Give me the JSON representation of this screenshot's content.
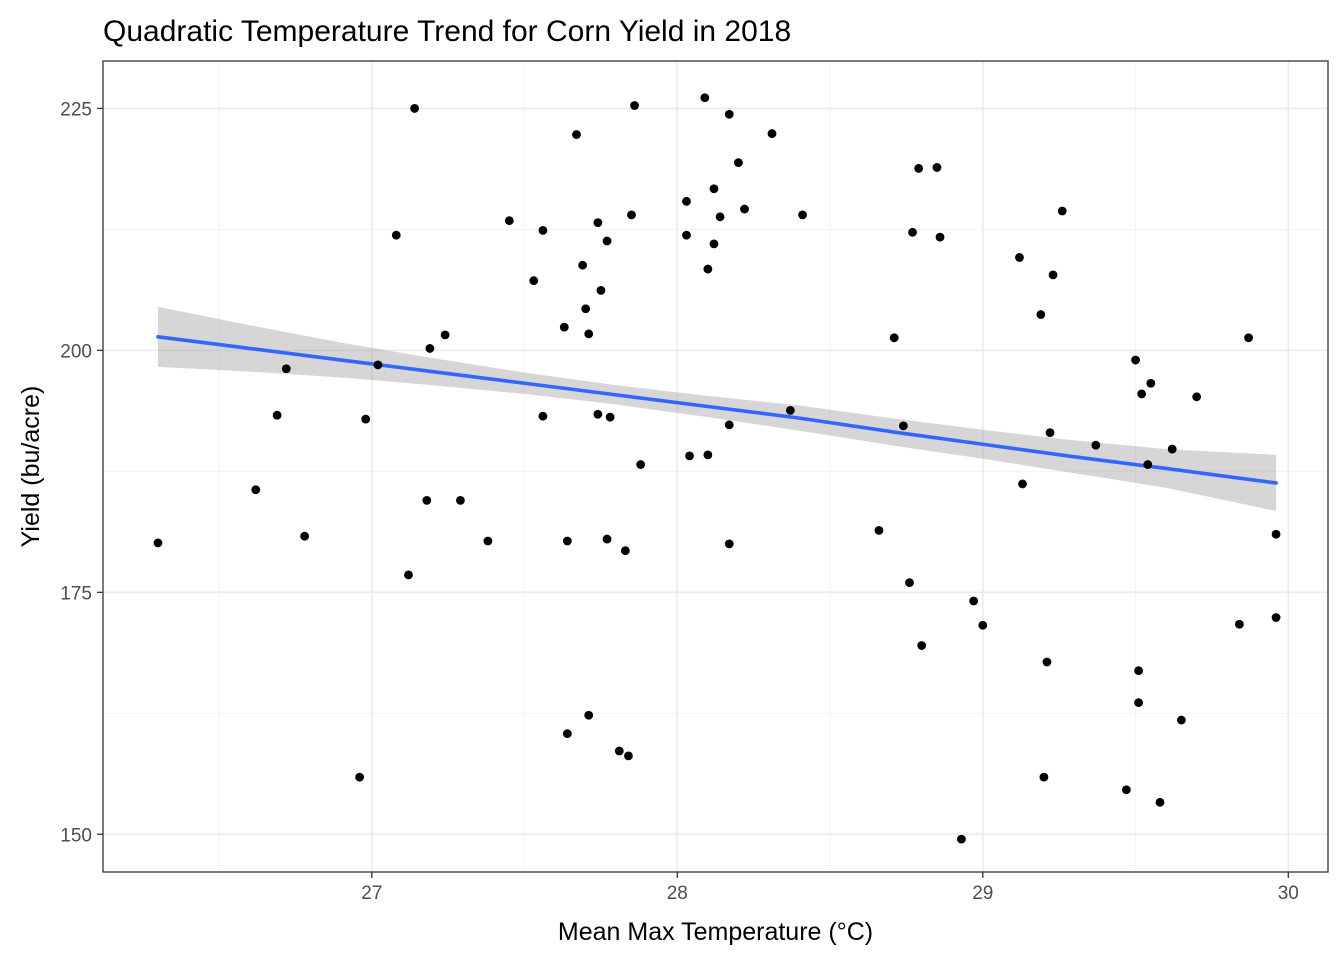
{
  "chart_data": {
    "type": "scatter",
    "title": "Quadratic Temperature Trend for Corn Yield in 2018",
    "xlabel": "Mean Max Temperature (°C)",
    "ylabel": "Yield (bu/acre)",
    "xlim": [
      26.12,
      30.13
    ],
    "ylim": [
      146.1,
      229.9
    ],
    "x_ticks": [
      27,
      28,
      29,
      30
    ],
    "x_tick_labels": [
      "27",
      "28",
      "29",
      "30"
    ],
    "y_ticks": [
      150,
      175,
      200,
      225
    ],
    "y_tick_labels": [
      "150",
      "175",
      "200",
      "225"
    ],
    "grid": true,
    "legend": "none",
    "colors": {
      "points": "#000000",
      "trend": "#3366FF",
      "ribbon": "#999999"
    },
    "points": [
      {
        "x": 26.3,
        "y": 180.1
      },
      {
        "x": 26.62,
        "y": 185.6
      },
      {
        "x": 26.69,
        "y": 193.3
      },
      {
        "x": 26.72,
        "y": 198.1
      },
      {
        "x": 26.78,
        "y": 180.8
      },
      {
        "x": 26.96,
        "y": 155.9
      },
      {
        "x": 26.98,
        "y": 192.9
      },
      {
        "x": 27.02,
        "y": 198.5
      },
      {
        "x": 27.08,
        "y": 211.9
      },
      {
        "x": 27.12,
        "y": 176.8
      },
      {
        "x": 27.14,
        "y": 225.0
      },
      {
        "x": 27.18,
        "y": 184.5
      },
      {
        "x": 27.19,
        "y": 200.2
      },
      {
        "x": 27.24,
        "y": 201.6
      },
      {
        "x": 27.29,
        "y": 184.5
      },
      {
        "x": 27.38,
        "y": 180.3
      },
      {
        "x": 27.45,
        "y": 213.4
      },
      {
        "x": 27.53,
        "y": 207.2
      },
      {
        "x": 27.56,
        "y": 212.4
      },
      {
        "x": 27.56,
        "y": 193.2
      },
      {
        "x": 27.63,
        "y": 202.4
      },
      {
        "x": 27.64,
        "y": 180.3
      },
      {
        "x": 27.64,
        "y": 160.4
      },
      {
        "x": 27.67,
        "y": 222.3
      },
      {
        "x": 27.69,
        "y": 208.8
      },
      {
        "x": 27.7,
        "y": 204.3
      },
      {
        "x": 27.71,
        "y": 162.3
      },
      {
        "x": 27.71,
        "y": 201.7
      },
      {
        "x": 27.74,
        "y": 193.4
      },
      {
        "x": 27.74,
        "y": 213.2
      },
      {
        "x": 27.75,
        "y": 206.2
      },
      {
        "x": 27.77,
        "y": 211.3
      },
      {
        "x": 27.77,
        "y": 180.5
      },
      {
        "x": 27.78,
        "y": 193.1
      },
      {
        "x": 27.81,
        "y": 158.6
      },
      {
        "x": 27.83,
        "y": 179.3
      },
      {
        "x": 27.84,
        "y": 158.1
      },
      {
        "x": 27.85,
        "y": 214.0
      },
      {
        "x": 27.86,
        "y": 225.3
      },
      {
        "x": 27.88,
        "y": 188.2
      },
      {
        "x": 28.03,
        "y": 211.9
      },
      {
        "x": 28.03,
        "y": 215.4
      },
      {
        "x": 28.04,
        "y": 189.1
      },
      {
        "x": 28.09,
        "y": 226.1
      },
      {
        "x": 28.1,
        "y": 208.4
      },
      {
        "x": 28.1,
        "y": 189.2
      },
      {
        "x": 28.12,
        "y": 216.7
      },
      {
        "x": 28.12,
        "y": 211.0
      },
      {
        "x": 28.14,
        "y": 213.8
      },
      {
        "x": 28.17,
        "y": 224.4
      },
      {
        "x": 28.17,
        "y": 192.3
      },
      {
        "x": 28.17,
        "y": 180.0
      },
      {
        "x": 28.2,
        "y": 219.4
      },
      {
        "x": 28.22,
        "y": 214.6
      },
      {
        "x": 28.31,
        "y": 222.4
      },
      {
        "x": 28.37,
        "y": 193.8
      },
      {
        "x": 28.41,
        "y": 214.0
      },
      {
        "x": 28.66,
        "y": 181.4
      },
      {
        "x": 28.71,
        "y": 201.3
      },
      {
        "x": 28.74,
        "y": 192.2
      },
      {
        "x": 28.76,
        "y": 176.0
      },
      {
        "x": 28.77,
        "y": 212.2
      },
      {
        "x": 28.79,
        "y": 218.8
      },
      {
        "x": 28.8,
        "y": 169.5
      },
      {
        "x": 28.85,
        "y": 218.9
      },
      {
        "x": 28.86,
        "y": 211.7
      },
      {
        "x": 28.93,
        "y": 149.5
      },
      {
        "x": 28.97,
        "y": 174.1
      },
      {
        "x": 29.0,
        "y": 171.6
      },
      {
        "x": 29.12,
        "y": 209.6
      },
      {
        "x": 29.13,
        "y": 186.2
      },
      {
        "x": 29.19,
        "y": 203.7
      },
      {
        "x": 29.2,
        "y": 155.9
      },
      {
        "x": 29.21,
        "y": 167.8
      },
      {
        "x": 29.22,
        "y": 191.5
      },
      {
        "x": 29.23,
        "y": 207.8
      },
      {
        "x": 29.26,
        "y": 214.4
      },
      {
        "x": 29.37,
        "y": 190.2
      },
      {
        "x": 29.47,
        "y": 154.6
      },
      {
        "x": 29.5,
        "y": 199.0
      },
      {
        "x": 29.51,
        "y": 163.6
      },
      {
        "x": 29.51,
        "y": 166.9
      },
      {
        "x": 29.52,
        "y": 195.5
      },
      {
        "x": 29.54,
        "y": 188.2
      },
      {
        "x": 29.55,
        "y": 196.6
      },
      {
        "x": 29.58,
        "y": 153.3
      },
      {
        "x": 29.62,
        "y": 189.8
      },
      {
        "x": 29.65,
        "y": 161.8
      },
      {
        "x": 29.7,
        "y": 195.2
      },
      {
        "x": 29.84,
        "y": 171.7
      },
      {
        "x": 29.87,
        "y": 201.3
      },
      {
        "x": 29.96,
        "y": 181.0
      },
      {
        "x": 29.96,
        "y": 172.4
      }
    ],
    "trend": {
      "x": [
        26.3,
        26.6,
        26.9,
        27.2,
        27.5,
        27.8,
        28.1,
        28.4,
        28.7,
        29.0,
        29.3,
        29.6,
        29.96
      ],
      "y": [
        201.4,
        200.2,
        199.0,
        197.8,
        196.6,
        195.4,
        194.2,
        193.0,
        191.6,
        190.3,
        189.0,
        187.8,
        186.3
      ],
      "lower": [
        198.3,
        197.8,
        197.2,
        196.4,
        195.5,
        194.4,
        193.1,
        191.7,
        190.2,
        188.8,
        187.3,
        185.8,
        183.4
      ],
      "upper": [
        204.5,
        202.6,
        200.8,
        199.2,
        197.7,
        196.4,
        195.3,
        194.3,
        193.0,
        191.8,
        190.7,
        189.8,
        189.2
      ]
    }
  }
}
